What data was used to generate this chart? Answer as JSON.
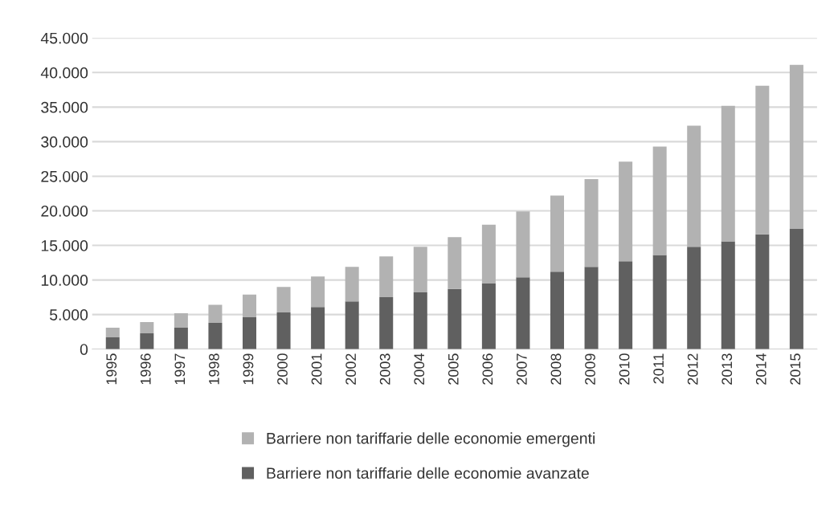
{
  "chart_data": {
    "type": "bar",
    "stacked": true,
    "categories": [
      "1995",
      "1996",
      "1997",
      "1998",
      "1999",
      "2000",
      "2001",
      "2002",
      "2003",
      "2004",
      "2005",
      "2006",
      "2007",
      "2008",
      "2009",
      "2010",
      "2011",
      "2012",
      "2013",
      "2014",
      "2015"
    ],
    "series": [
      {
        "name": "Barriere non tariffarie delle economie avanzate",
        "color": "#606060",
        "values": [
          1700,
          2300,
          3100,
          3800,
          4600,
          5300,
          6100,
          6900,
          7500,
          8200,
          8700,
          9500,
          10400,
          11200,
          11900,
          12700,
          13600,
          14800,
          15600,
          16600,
          17400
        ]
      },
      {
        "name": "Barriere non tariffarie delle economie emergenti",
        "color": "#b2b2b2",
        "values": [
          1400,
          1600,
          2100,
          2600,
          3300,
          3700,
          4400,
          5000,
          5900,
          6600,
          7500,
          8500,
          9500,
          11000,
          12700,
          14400,
          15700,
          17500,
          19600,
          21500,
          23700
        ]
      }
    ],
    "ylim": [
      0,
      45000
    ],
    "yticks": [
      {
        "value": 0,
        "label": "0"
      },
      {
        "value": 5000,
        "label": "5.000"
      },
      {
        "value": 10000,
        "label": "10.000"
      },
      {
        "value": 15000,
        "label": "15.000"
      },
      {
        "value": 20000,
        "label": "20.000"
      },
      {
        "value": 25000,
        "label": "25.000"
      },
      {
        "value": 30000,
        "label": "30.000"
      },
      {
        "value": 35000,
        "label": "35.000"
      },
      {
        "value": 40000,
        "label": "40.000"
      },
      {
        "value": 45000,
        "label": "45.000"
      }
    ],
    "grid": "y",
    "legend": "bottom"
  }
}
